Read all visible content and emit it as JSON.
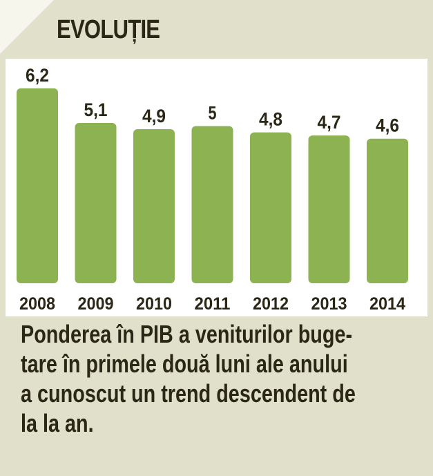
{
  "header": {
    "title": "EVOLUȚIE"
  },
  "chart_data": {
    "type": "bar",
    "categories": [
      "2008",
      "2009",
      "2010",
      "2011",
      "2012",
      "2013",
      "2014"
    ],
    "values": [
      6.2,
      5.1,
      4.9,
      5.0,
      4.8,
      4.7,
      4.6
    ],
    "value_labels": [
      "6,2",
      "5,1",
      "4,9",
      "5",
      "4,8",
      "4,7",
      "4,6"
    ],
    "title": "EVOLUȚIE",
    "xlabel": "",
    "ylabel": "",
    "grid": false,
    "legend": "none",
    "bar_color": "#8db252"
  },
  "caption": {
    "lines": [
      "Ponderea în PIB a veniturilor buge-",
      "tare în primele două luni ale anului",
      "a cunoscut un trend descendent de",
      "la la an."
    ]
  },
  "colors": {
    "background": "#e1e0cb",
    "plot_background": "#ffffff",
    "text": "#2b2716",
    "bar": "#8db252"
  }
}
